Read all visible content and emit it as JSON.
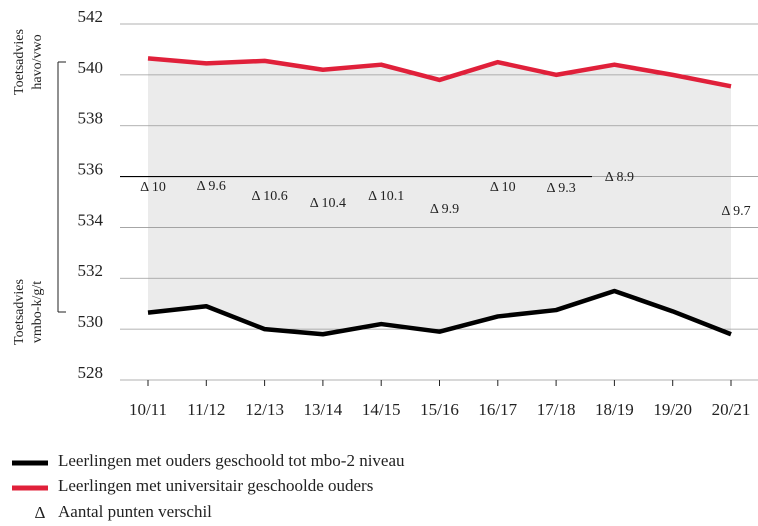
{
  "chart_data": {
    "type": "line",
    "categories": [
      "10/11",
      "11/12",
      "12/13",
      "13/14",
      "14/15",
      "15/16",
      "16/17",
      "17/18",
      "18/19",
      "19/20",
      "20/21"
    ],
    "series": [
      {
        "name": "Leerlingen met ouders geschoold tot mbo-2 niveau",
        "color": "#000000",
        "values": [
          530.65,
          530.9,
          530.0,
          529.8,
          530.2,
          529.9,
          530.5,
          530.75,
          531.5,
          530.7,
          529.8
        ]
      },
      {
        "name": "Leerlingen met universitair geschoolde ouders",
        "color": "#e0203a",
        "values": [
          540.65,
          540.45,
          540.55,
          540.2,
          540.4,
          539.8,
          540.5,
          540.0,
          540.4,
          540.0,
          539.55
        ]
      }
    ],
    "differences": {
      "name": "Aantal punten verschil",
      "symbol": "Δ",
      "values": [
        10,
        9.6,
        10.6,
        10.4,
        10.1,
        9.9,
        10,
        9.3,
        8.9,
        null,
        9.7
      ],
      "value_labels": [
        "Δ 10",
        "Δ 9.6",
        "Δ 10.6",
        "Δ 10.4",
        "Δ 10.1",
        "Δ 9.9",
        "Δ 10",
        "Δ 9.3",
        "Δ 8.9",
        null,
        "Δ 9.7"
      ]
    },
    "annotations": {
      "upper": [
        "Toetsadvies",
        "havo/vwo"
      ],
      "lower": [
        "Toetsadvies",
        "vmbo-k/g/t"
      ]
    },
    "ylim": [
      528,
      542
    ],
    "yticks": [
      528,
      530,
      532,
      534,
      536,
      538,
      540,
      542
    ],
    "grid": true,
    "fill_between": "#ebebeb"
  }
}
